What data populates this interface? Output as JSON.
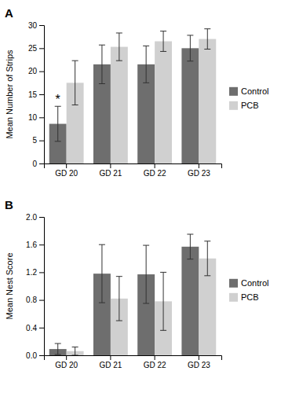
{
  "chart_data": [
    {
      "type": "bar",
      "title": "A",
      "y_label": "Mean Number of Strips",
      "categories": [
        "GD 20",
        "GD 21",
        "GD 22",
        "GD 23"
      ],
      "series": [
        {
          "name": "Control",
          "color": "#6e6e6e",
          "values": [
            8.6,
            21.5,
            21.5,
            25.0
          ],
          "errors": [
            3.8,
            4.2,
            4.0,
            2.8
          ]
        },
        {
          "name": "PCB",
          "color": "#d0d0d0",
          "values": [
            17.5,
            25.3,
            26.5,
            27.0
          ],
          "errors": [
            4.8,
            3.0,
            2.2,
            2.2
          ]
        }
      ],
      "ylim": [
        0,
        30
      ],
      "yticks": [
        0,
        5,
        10,
        15,
        20,
        25,
        30
      ],
      "annotations": [
        {
          "text": "*",
          "x": "GD 20",
          "y": 14.5
        }
      ],
      "grid": false,
      "legend": "right"
    },
    {
      "type": "bar",
      "title": "B",
      "y_label": "Mean Nest Score",
      "categories": [
        "GD 20",
        "GD 21",
        "GD 22",
        "GD 23"
      ],
      "series": [
        {
          "name": "Control",
          "color": "#6e6e6e",
          "values": [
            0.09,
            1.18,
            1.17,
            1.57
          ],
          "errors": [
            0.08,
            0.42,
            0.42,
            0.18
          ]
        },
        {
          "name": "PCB",
          "color": "#d0d0d0",
          "values": [
            0.06,
            0.82,
            0.78,
            1.4
          ],
          "errors": [
            0.06,
            0.32,
            0.42,
            0.25
          ]
        }
      ],
      "ylim": [
        0,
        2.0
      ],
      "yticks": [
        {
          "value": 0,
          "label": "0.0"
        },
        0.4,
        0.8,
        1.2,
        1.6,
        {
          "value": 2.0,
          "label": "2.0"
        }
      ],
      "grid": false,
      "legend": "right"
    }
  ]
}
